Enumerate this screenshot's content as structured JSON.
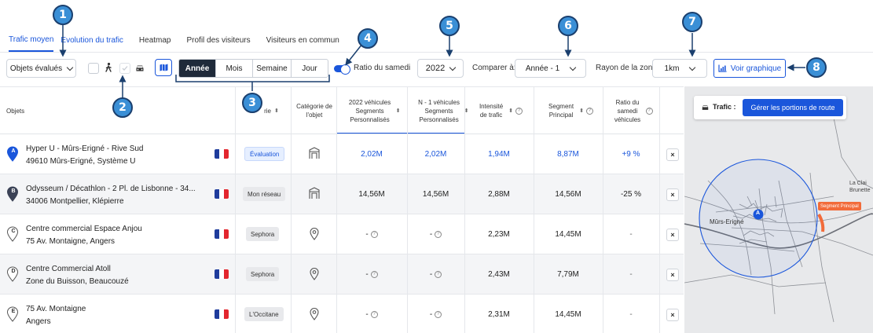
{
  "tabs": [
    "Trafic moyen",
    "Evolution du trafic",
    "Heatmap",
    "Profil des visiteurs",
    "Visiteurs en commun"
  ],
  "toolbar": {
    "objects_dropdown": "Objets évalués",
    "period_segments": [
      "Année",
      "Mois",
      "Semaine",
      "Jour"
    ],
    "period_selected": "Année",
    "saturday_ratio_label": "Ratio du samedi",
    "year": "2022",
    "compare_label": "Comparer à:",
    "compare_value": "Année - 1",
    "radius_label": "Rayon de la zone",
    "radius_value": "1km",
    "chart_button": "Voir graphique"
  },
  "table": {
    "headers": {
      "objects": "Objets",
      "category": "rie",
      "object_category": "Catégorie de l'objet",
      "year_vehicles": "2022 véhicules Segments Personnalisés",
      "n1_vehicles": "N - 1 véhicules Segments Personnalisés",
      "traffic_intensity": "Intensité de trafic",
      "main_segment": "Segment Principal",
      "saturday_ratio": "Ratio du samedi véhicules"
    },
    "rows": [
      {
        "marker": "A",
        "marker_color": "#1a56db",
        "name": "Hyper U - Mûrs-Erigné - Rive Sud",
        "address": "49610 Mûrs-Erigné, Système U",
        "badge": "Évaluation",
        "badge_type": "eval",
        "category_icon": "building-icon",
        "year_value": "2,02M",
        "n1_value": "2,02M",
        "intensity": "1,94M",
        "segment": "8,87M",
        "ratio": "+9 %",
        "blue": true
      },
      {
        "marker": "B",
        "marker_color": "#3b4256",
        "name": "Odysseum / Décathlon - 2 Pl. de Lisbonne - 34...",
        "address": "34006 Montpellier, Klépierre",
        "badge": "Mon réseau",
        "badge_type": "grey",
        "category_icon": "building-icon",
        "year_value": "14,56M",
        "n1_value": "14,56M",
        "intensity": "2,88M",
        "segment": "14,56M",
        "ratio": "-25 %",
        "blue": false
      },
      {
        "marker": "C",
        "marker_color": "#ffffff",
        "name": "Centre commercial Espace Anjou",
        "address": "75 Av. Montaigne, Angers",
        "badge": "Sephora",
        "badge_type": "grey",
        "category_icon": "location-pin-icon",
        "year_value": "-",
        "n1_value": "-",
        "intensity": "2,23M",
        "segment": "14,45M",
        "ratio": "-",
        "blue": false
      },
      {
        "marker": "D",
        "marker_color": "#ffffff",
        "name": "Centre Commercial Atoll",
        "address": "Zone du Buisson, Beaucouzé",
        "badge": "Sephora",
        "badge_type": "grey",
        "category_icon": "location-pin-icon",
        "year_value": "-",
        "n1_value": "-",
        "intensity": "2,43M",
        "segment": "7,79M",
        "ratio": "-",
        "blue": false
      },
      {
        "marker": "E",
        "marker_color": "#ffffff",
        "name": "75 Av. Montaigne",
        "address": "Angers",
        "badge": "L'Occitane",
        "badge_type": "grey",
        "category_icon": "location-pin-icon",
        "year_value": "-",
        "n1_value": "-",
        "intensity": "2,31M",
        "segment": "14,45M",
        "ratio": "-",
        "blue": false
      }
    ]
  },
  "map": {
    "traffic_label": "Trafic :",
    "manage_button": "Gérer les portions de route",
    "segment_label": "Segment Principal",
    "town_label": "Mûrs-Erigné",
    "marker": "A",
    "place_labels": [
      "La Clai",
      "Brunette"
    ]
  },
  "callouts": [
    "1",
    "2",
    "3",
    "4",
    "5",
    "6",
    "7",
    "8"
  ],
  "colors": {
    "accent": "#1a56db",
    "callout": "#3a8fd6",
    "segment": "#f26b3a"
  }
}
